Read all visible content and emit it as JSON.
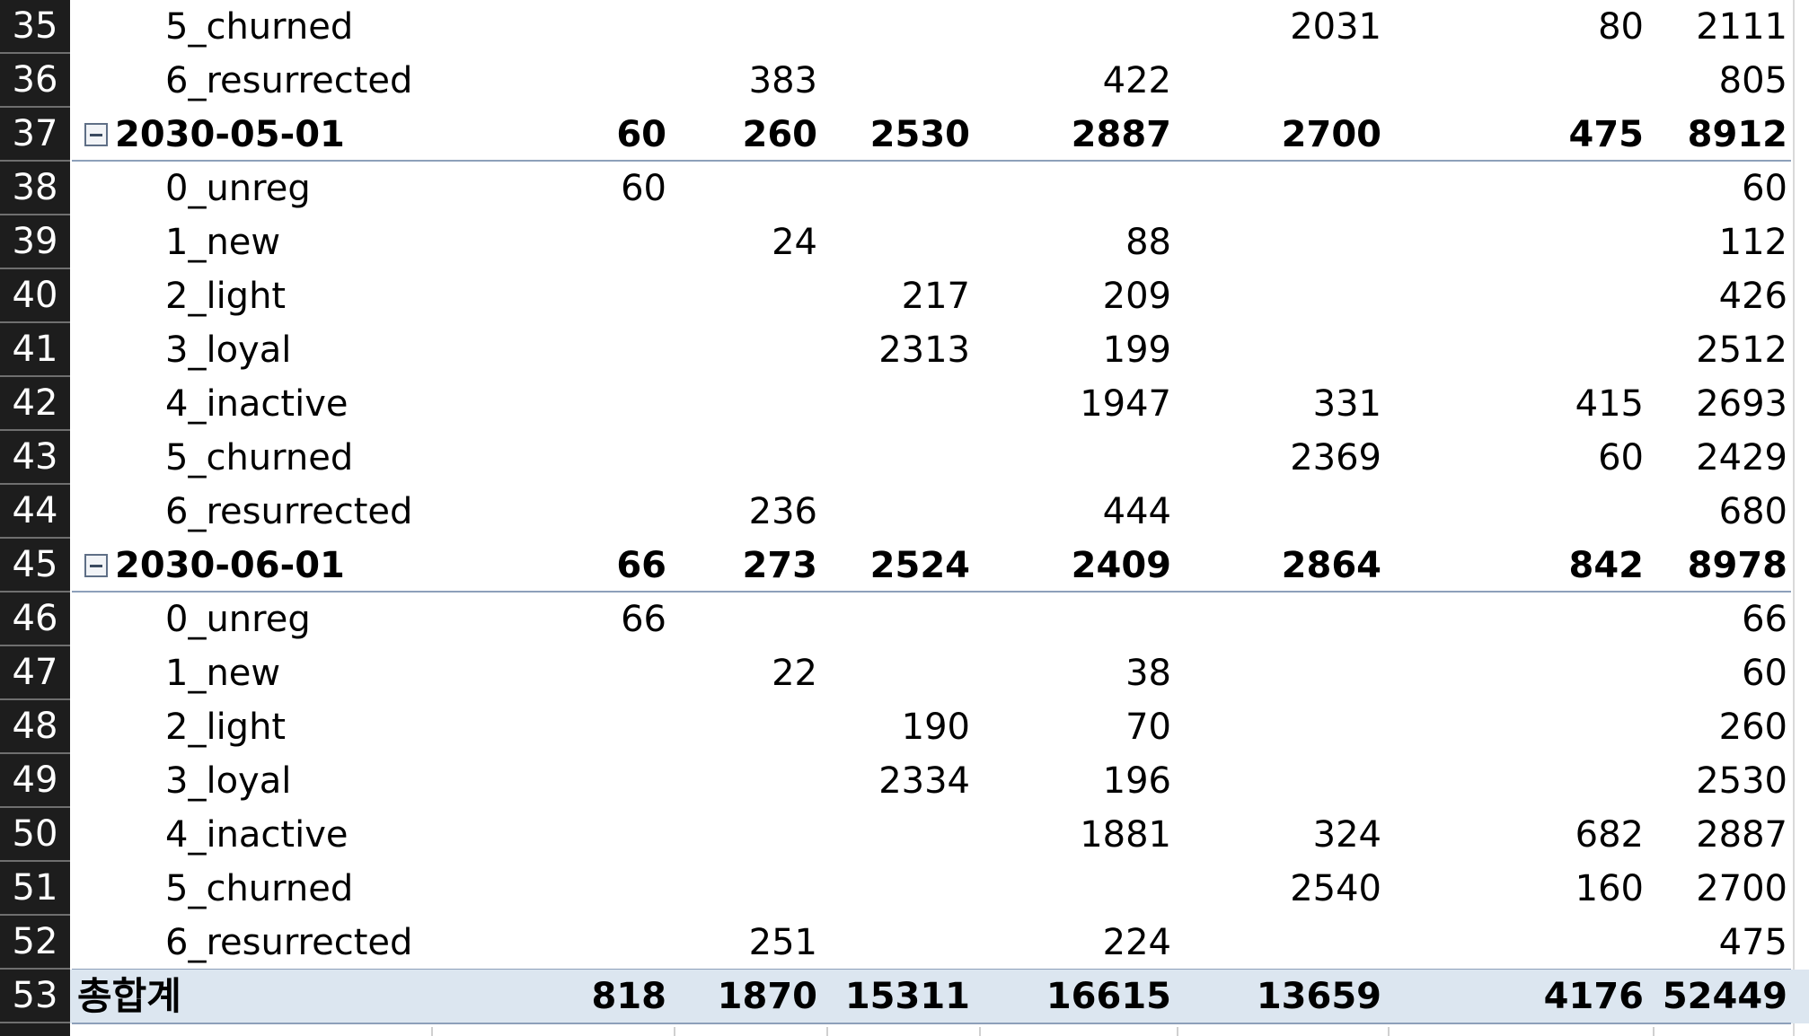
{
  "rows": [
    {
      "n": "35",
      "label": "5_churned",
      "type": "item",
      "v": [
        "",
        "",
        "",
        "",
        "2031",
        "80",
        "2111"
      ]
    },
    {
      "n": "36",
      "label": "6_resurrected",
      "type": "item",
      "v": [
        "",
        "383",
        "",
        "422",
        "",
        "",
        "805"
      ]
    },
    {
      "n": "37",
      "label": "2030-05-01",
      "type": "date",
      "v": [
        "60",
        "260",
        "2530",
        "2887",
        "2700",
        "475",
        "8912"
      ]
    },
    {
      "n": "38",
      "label": "0_unreg",
      "type": "item",
      "v": [
        "60",
        "",
        "",
        "",
        "",
        "",
        "60"
      ]
    },
    {
      "n": "39",
      "label": "1_new",
      "type": "item",
      "v": [
        "",
        "24",
        "",
        "88",
        "",
        "",
        "112"
      ]
    },
    {
      "n": "40",
      "label": "2_light",
      "type": "item",
      "v": [
        "",
        "",
        "217",
        "209",
        "",
        "",
        "426"
      ]
    },
    {
      "n": "41",
      "label": "3_loyal",
      "type": "item",
      "v": [
        "",
        "",
        "2313",
        "199",
        "",
        "",
        "2512"
      ]
    },
    {
      "n": "42",
      "label": "4_inactive",
      "type": "item",
      "v": [
        "",
        "",
        "",
        "1947",
        "331",
        "415",
        "2693"
      ]
    },
    {
      "n": "43",
      "label": "5_churned",
      "type": "item",
      "v": [
        "",
        "",
        "",
        "",
        "2369",
        "60",
        "2429"
      ]
    },
    {
      "n": "44",
      "label": "6_resurrected",
      "type": "item",
      "v": [
        "",
        "236",
        "",
        "444",
        "",
        "",
        "680"
      ]
    },
    {
      "n": "45",
      "label": "2030-06-01",
      "type": "date",
      "v": [
        "66",
        "273",
        "2524",
        "2409",
        "2864",
        "842",
        "8978"
      ]
    },
    {
      "n": "46",
      "label": "0_unreg",
      "type": "item",
      "v": [
        "66",
        "",
        "",
        "",
        "",
        "",
        "66"
      ]
    },
    {
      "n": "47",
      "label": "1_new",
      "type": "item",
      "v": [
        "",
        "22",
        "",
        "38",
        "",
        "",
        "60"
      ]
    },
    {
      "n": "48",
      "label": "2_light",
      "type": "item",
      "v": [
        "",
        "",
        "190",
        "70",
        "",
        "",
        "260"
      ]
    },
    {
      "n": "49",
      "label": "3_loyal",
      "type": "item",
      "v": [
        "",
        "",
        "2334",
        "196",
        "",
        "",
        "2530"
      ]
    },
    {
      "n": "50",
      "label": "4_inactive",
      "type": "item",
      "v": [
        "",
        "",
        "",
        "1881",
        "324",
        "682",
        "2887"
      ]
    },
    {
      "n": "51",
      "label": "5_churned",
      "type": "item",
      "v": [
        "",
        "",
        "",
        "",
        "2540",
        "160",
        "2700"
      ]
    },
    {
      "n": "52",
      "label": "6_resurrected",
      "type": "item",
      "v": [
        "",
        "251",
        "",
        "224",
        "",
        "",
        "475"
      ]
    },
    {
      "n": "53",
      "label": "총합계",
      "type": "grand",
      "v": [
        "818",
        "1870",
        "15311",
        "16615",
        "13659",
        "4176",
        "52449"
      ]
    }
  ],
  "colors": {
    "row_header_bg": "#1d1d1d",
    "grand_total_bg": "#dce6f0",
    "separator": "#8da0ba"
  }
}
